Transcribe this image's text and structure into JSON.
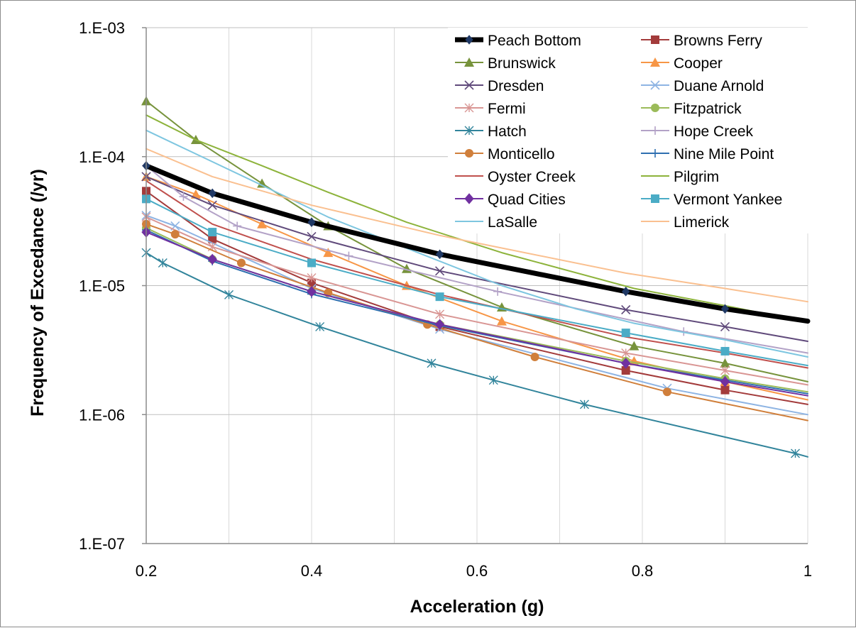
{
  "chart_data": {
    "type": "line",
    "title": "",
    "xlabel": "Acceleration (g)",
    "ylabel": "Frequency of Excedance (/yr)",
    "xlim": [
      0.2,
      1.0
    ],
    "ylim": [
      1e-07,
      0.001
    ],
    "yscale": "log",
    "grid": "on",
    "legend_position": "top-right",
    "x_ticks": [
      "0.2",
      "0.4",
      "0.6",
      "0.8",
      "1"
    ],
    "y_ticks": [
      "1.E-07",
      "1.E-06",
      "1.E-05",
      "1.E-04",
      "1.E-03"
    ],
    "series": [
      {
        "name": "Peach Bottom",
        "color": "#000000",
        "marker": "diamond",
        "width": 7,
        "x": [
          0.2,
          0.28,
          0.4,
          0.555,
          0.78,
          0.9,
          1.0
        ],
        "y": [
          8.5e-05,
          5.2e-05,
          3.1e-05,
          1.75e-05,
          9e-06,
          6.6e-06,
          5.3e-06
        ]
      },
      {
        "name": "Browns Ferry",
        "color": "#a33b3b",
        "marker": "square",
        "width": 2,
        "x": [
          0.2,
          0.28,
          0.4,
          0.555,
          0.78,
          0.9,
          1.0
        ],
        "y": [
          5.4e-05,
          2.3e-05,
          1.05e-05,
          4.8e-06,
          2.2e-06,
          1.55e-06,
          1.2e-06
        ]
      },
      {
        "name": "Brunswick",
        "color": "#77933c",
        "marker": "triangle",
        "width": 2,
        "x": [
          0.2,
          0.26,
          0.34,
          0.42,
          0.515,
          0.63,
          0.79,
          0.9,
          1.0
        ],
        "y": [
          0.00027,
          0.000135,
          6.2e-05,
          2.9e-05,
          1.35e-05,
          6.8e-06,
          3.4e-06,
          2.5e-06,
          1.8e-06
        ]
      },
      {
        "name": "Cooper",
        "color": "#f79646",
        "marker": "triangle",
        "width": 2,
        "x": [
          0.2,
          0.26,
          0.34,
          0.42,
          0.515,
          0.63,
          0.79,
          0.9,
          1.0
        ],
        "y": [
          7e-05,
          5.1e-05,
          3e-05,
          1.8e-05,
          1e-05,
          5.3e-06,
          2.6e-06,
          1.8e-06,
          1.3e-06
        ]
      },
      {
        "name": "Dresden",
        "color": "#604a7b",
        "marker": "x",
        "width": 2,
        "x": [
          0.2,
          0.28,
          0.4,
          0.555,
          0.78,
          0.9,
          1.0
        ],
        "y": [
          7e-05,
          4.2e-05,
          2.4e-05,
          1.3e-05,
          6.5e-06,
          4.8e-06,
          3.7e-06
        ]
      },
      {
        "name": "Duane Arnold",
        "color": "#8eb4e3",
        "marker": "x",
        "width": 2,
        "x": [
          0.2,
          0.235,
          0.4,
          0.555,
          0.83,
          1.0
        ],
        "y": [
          3.5e-05,
          2.9e-05,
          9.5e-06,
          4.6e-06,
          1.6e-06,
          1e-06
        ]
      },
      {
        "name": "Fermi",
        "color": "#d99694",
        "marker": "asterisk",
        "width": 2,
        "x": [
          0.2,
          0.28,
          0.4,
          0.555,
          0.78,
          0.9,
          1.0
        ],
        "y": [
          3.4e-05,
          2e-05,
          1.15e-05,
          6e-06,
          3e-06,
          2.2e-06,
          1.7e-06
        ]
      },
      {
        "name": "Fitzpatrick",
        "color": "#9bbb59",
        "marker": "circle",
        "width": 2,
        "x": [
          0.2,
          0.28,
          0.4,
          0.555,
          0.78,
          0.9,
          1.0
        ],
        "y": [
          2.8e-05,
          1.6e-05,
          9e-06,
          5e-06,
          2.6e-06,
          1.9e-06,
          1.5e-06
        ]
      },
      {
        "name": "Hatch",
        "color": "#31849b",
        "marker": "asterisk",
        "width": 2,
        "x": [
          0.2,
          0.22,
          0.3,
          0.41,
          0.545,
          0.62,
          0.73,
          0.985,
          1.0
        ],
        "y": [
          1.8e-05,
          1.5e-05,
          8.5e-06,
          4.8e-06,
          2.5e-06,
          1.85e-06,
          1.2e-06,
          5e-07,
          4.7e-07
        ]
      },
      {
        "name": "Hope Creek",
        "color": "#b3a2c7",
        "marker": "plus",
        "width": 2,
        "x": [
          0.2,
          0.245,
          0.31,
          0.445,
          0.625,
          0.85,
          1.0
        ],
        "y": [
          8.5e-05,
          4.9e-05,
          2.9e-05,
          1.7e-05,
          9e-06,
          4.4e-06,
          3e-06
        ]
      },
      {
        "name": "Monticello",
        "color": "#d07f3b",
        "marker": "circle",
        "width": 2,
        "x": [
          0.2,
          0.235,
          0.315,
          0.42,
          0.54,
          0.67,
          0.83,
          1.0
        ],
        "y": [
          3e-05,
          2.5e-05,
          1.5e-05,
          8.8e-06,
          5e-06,
          2.8e-06,
          1.5e-06,
          9e-07
        ]
      },
      {
        "name": "Nine Mile Point",
        "color": "#2e6fb0",
        "marker": "plus",
        "width": 2,
        "x": [
          0.2,
          0.28,
          0.4,
          0.555,
          0.78,
          0.9,
          1.0
        ],
        "y": [
          2.7e-05,
          1.55e-05,
          8.6e-06,
          4.9e-06,
          2.5e-06,
          1.85e-06,
          1.45e-06
        ]
      },
      {
        "name": "Oyster Creek",
        "color": "#c0504d",
        "marker": "none",
        "width": 2,
        "x": [
          0.2,
          0.28,
          0.4,
          0.555,
          0.78,
          0.9,
          1.0
        ],
        "y": [
          6.5e-05,
          3e-05,
          1.6e-05,
          8.5e-06,
          4e-06,
          3e-06,
          2.3e-06
        ]
      },
      {
        "name": "Pilgrim",
        "color": "#8db33b",
        "marker": "none",
        "width": 2,
        "x": [
          0.2,
          0.26,
          0.34,
          0.42,
          0.515,
          0.63,
          0.79,
          0.9,
          1.0
        ],
        "y": [
          0.00021,
          0.000135,
          8.5e-05,
          5.3e-05,
          3.1e-05,
          1.8e-05,
          9.5e-06,
          7e-06,
          5.2e-06
        ]
      },
      {
        "name": "Quad Cities",
        "color": "#7030a0",
        "marker": "diamond",
        "width": 2,
        "x": [
          0.2,
          0.28,
          0.4,
          0.555,
          0.78,
          0.9,
          1.0
        ],
        "y": [
          2.6e-05,
          1.6e-05,
          9e-06,
          5e-06,
          2.5e-06,
          1.8e-06,
          1.4e-06
        ]
      },
      {
        "name": "Vermont Yankee",
        "color": "#4bacc6",
        "marker": "square",
        "width": 2,
        "x": [
          0.2,
          0.28,
          0.4,
          0.555,
          0.78,
          0.9,
          1.0
        ],
        "y": [
          4.7e-05,
          2.6e-05,
          1.5e-05,
          8.2e-06,
          4.3e-06,
          3.1e-06,
          2.4e-06
        ]
      },
      {
        "name": "LaSalle",
        "color": "#7ec6e0",
        "marker": "none",
        "width": 2,
        "x": [
          0.2,
          0.26,
          0.34,
          0.42,
          0.515,
          0.63,
          0.72,
          0.79,
          0.9,
          1.0
        ],
        "y": [
          0.00016,
          0.000105,
          6e-05,
          3.4e-05,
          1.95e-05,
          1e-05,
          6.6e-06,
          5.1e-06,
          3.8e-06,
          2.8e-06
        ]
      },
      {
        "name": "Limerick",
        "color": "#fac090",
        "marker": "none",
        "width": 2,
        "x": [
          0.2,
          0.28,
          0.4,
          0.555,
          0.78,
          0.9,
          1.0
        ],
        "y": [
          0.000115,
          7e-05,
          4.2e-05,
          2.45e-05,
          1.25e-05,
          9.5e-06,
          7.5e-06
        ]
      }
    ]
  }
}
